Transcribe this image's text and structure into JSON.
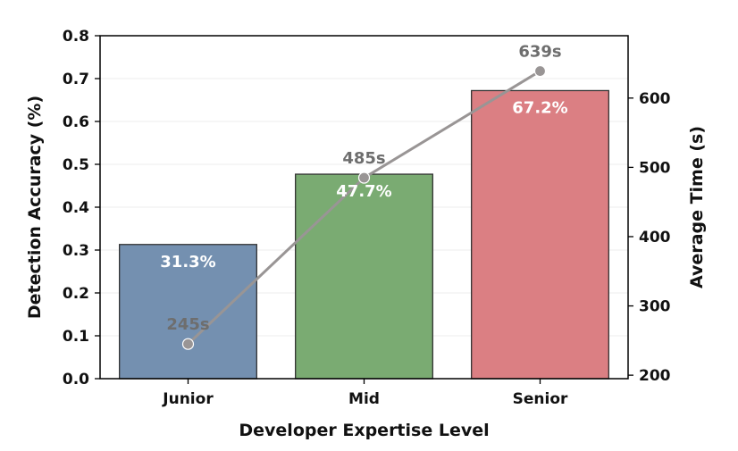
{
  "chart_data": {
    "type": "bar",
    "categories": [
      "Junior",
      "Mid",
      "Senior"
    ],
    "series": [
      {
        "name": "Detection Accuracy (%)",
        "axis": "left",
        "values": [
          0.313,
          0.477,
          0.672
        ],
        "labels": [
          "31.3%",
          "47.7%",
          "67.2%"
        ],
        "colors": [
          "#7490b0",
          "#7aab72",
          "#db7f83"
        ]
      },
      {
        "name": "Average Time (s)",
        "axis": "right",
        "type": "line",
        "values": [
          245,
          485,
          639
        ],
        "labels": [
          "245s",
          "485s",
          "639s"
        ],
        "color": "#999595"
      }
    ],
    "xlabel": "Developer Expertise Level",
    "ylabel": "Detection Accuracy (%)",
    "y2label": "Average Time (s)",
    "ylim": [
      0,
      0.8
    ],
    "y2lim": [
      195,
      690
    ],
    "yticks": [
      0.0,
      0.1,
      0.2,
      0.3,
      0.4,
      0.5,
      0.6,
      0.7,
      0.8
    ],
    "ytick_labels": [
      "0.0",
      "0.1",
      "0.2",
      "0.3",
      "0.4",
      "0.5",
      "0.6",
      "0.7",
      "0.8"
    ],
    "y2ticks": [
      200,
      300,
      400,
      500,
      600
    ],
    "y2tick_labels": [
      "200",
      "300",
      "400",
      "500",
      "600"
    ],
    "grid": "horizontal"
  }
}
